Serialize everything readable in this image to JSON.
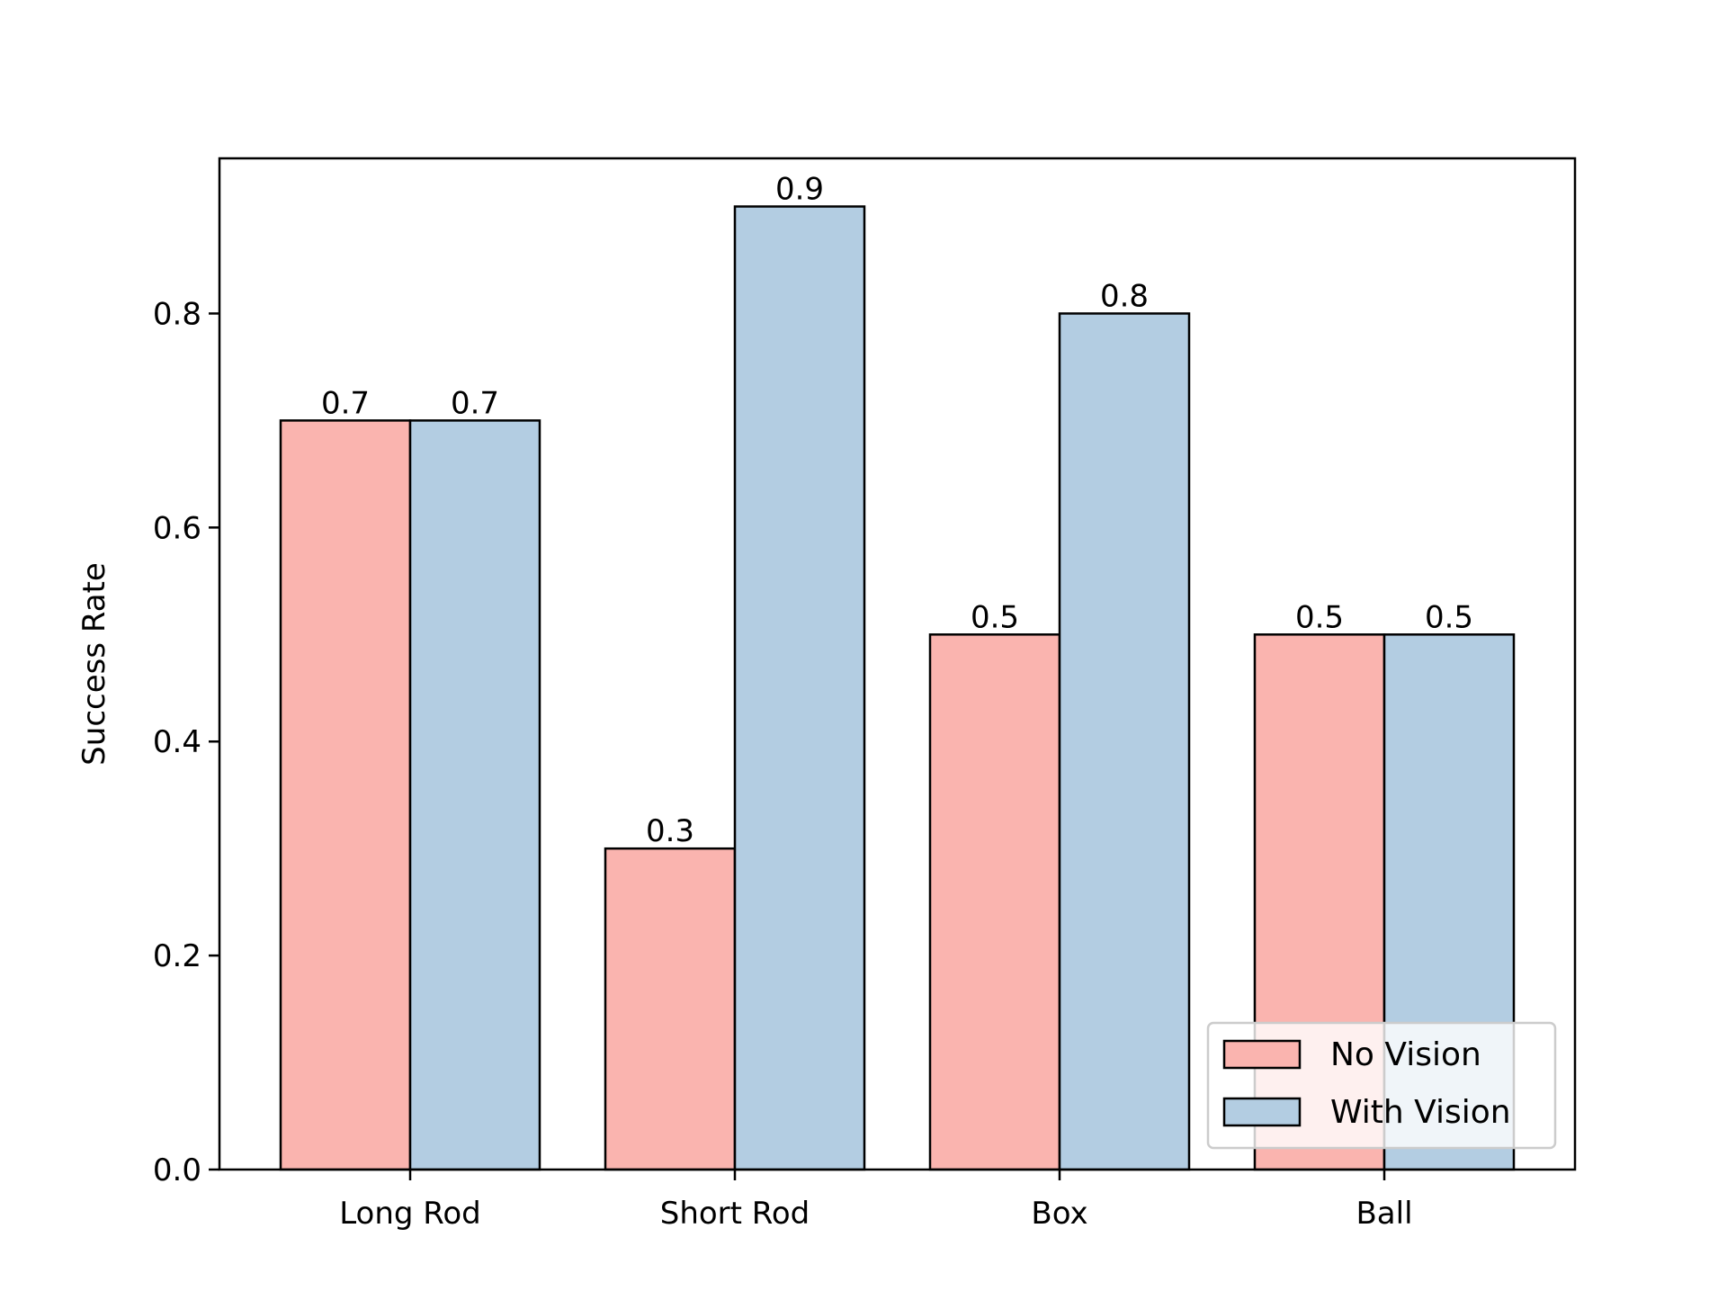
{
  "chart_data": {
    "type": "bar",
    "title": "",
    "xlabel": "",
    "ylabel": "Success Rate",
    "ylim": [
      0,
      0.945
    ],
    "yticks": [
      0.0,
      0.2,
      0.4,
      0.6,
      0.8
    ],
    "ytick_labels": [
      "0.0",
      "0.2",
      "0.4",
      "0.6",
      "0.8"
    ],
    "categories": [
      "Long Rod",
      "Short Rod",
      "Box",
      "Ball"
    ],
    "series": [
      {
        "name": "No Vision",
        "values": [
          0.7,
          0.3,
          0.5,
          0.5
        ],
        "labels": [
          "0.7",
          "0.3",
          "0.5",
          "0.5"
        ],
        "color": "#fab4af"
      },
      {
        "name": "With Vision",
        "values": [
          0.7,
          0.9,
          0.8,
          0.5
        ],
        "labels": [
          "0.7",
          "0.9",
          "0.8",
          "0.5"
        ],
        "color": "#b3cde2"
      }
    ],
    "grid": false,
    "legend_position": "lower-right",
    "edge_color": "#000000"
  }
}
